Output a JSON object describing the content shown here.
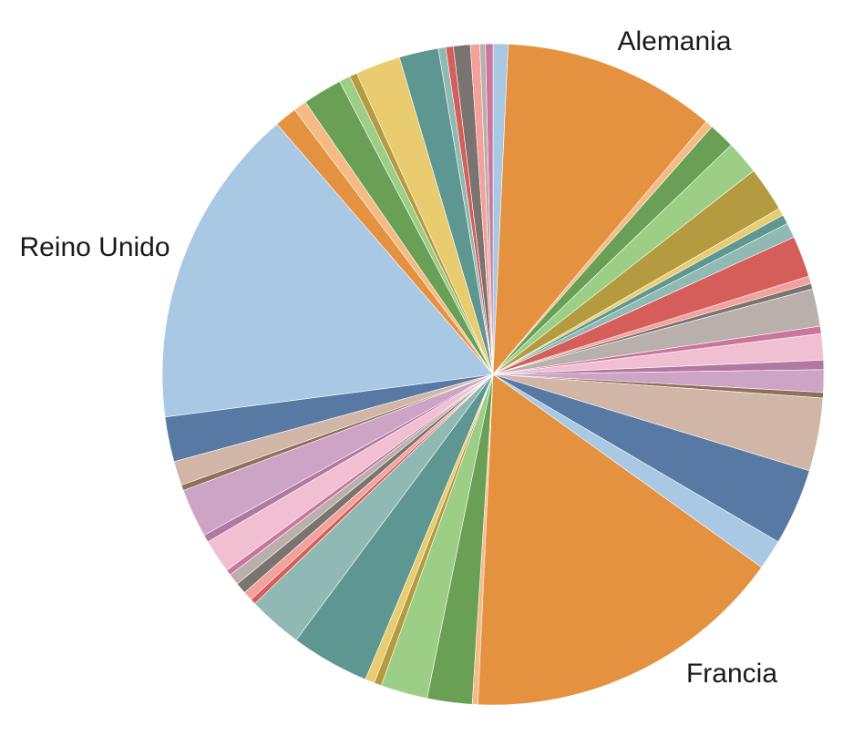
{
  "chart_data": {
    "type": "pie",
    "title": "",
    "start_angle_deg": -90,
    "direction": "clockwise",
    "legend": "none",
    "slices": [
      {
        "value": 0.8,
        "color": "#a8c8e4"
      },
      {
        "value": 11.4,
        "color": "#e49240",
        "label": "Alemania"
      },
      {
        "value": 0.4,
        "color": "#f6bb84"
      },
      {
        "value": 1.4,
        "color": "#69a055"
      },
      {
        "value": 1.8,
        "color": "#9ccf85"
      },
      {
        "value": 2.4,
        "color": "#b59b40"
      },
      {
        "value": 0.4,
        "color": "#e9cc6f"
      },
      {
        "value": 0.5,
        "color": "#5e9791"
      },
      {
        "value": 0.8,
        "color": "#90b9b4"
      },
      {
        "value": 2.2,
        "color": "#d55e5b"
      },
      {
        "value": 0.4,
        "color": "#f4a09b"
      },
      {
        "value": 0.3,
        "color": "#7a7370"
      },
      {
        "value": 2.0,
        "color": "#b9b0ab"
      },
      {
        "value": 0.4,
        "color": "#cb759b"
      },
      {
        "value": 1.4,
        "color": "#f1bfd2"
      },
      {
        "value": 0.5,
        "color": "#b178a1"
      },
      {
        "value": 1.2,
        "color": "#cda3c6"
      },
      {
        "value": 0.3,
        "color": "#8f7058"
      },
      {
        "value": 3.9,
        "color": "#d1b5a6"
      },
      {
        "value": 4.1,
        "color": "#5879a3"
      },
      {
        "value": 1.6,
        "color": "#a8c8e4"
      },
      {
        "value": 17.3,
        "color": "#e49240",
        "label": "Francia"
      },
      {
        "value": 0.3,
        "color": "#f6bb84"
      },
      {
        "value": 2.4,
        "color": "#69a055"
      },
      {
        "value": 2.5,
        "color": "#9ccf85"
      },
      {
        "value": 0.4,
        "color": "#b59b40"
      },
      {
        "value": 0.5,
        "color": "#e9cc6f"
      },
      {
        "value": 4.2,
        "color": "#5e9791"
      },
      {
        "value": 2.9,
        "color": "#90b9b4"
      },
      {
        "value": 0.3,
        "color": "#d55e5b"
      },
      {
        "value": 0.5,
        "color": "#f4a09b"
      },
      {
        "value": 0.6,
        "color": "#7a7370"
      },
      {
        "value": 0.6,
        "color": "#b9b0ab"
      },
      {
        "value": 0.3,
        "color": "#cb759b"
      },
      {
        "value": 1.8,
        "color": "#f1bfd2"
      },
      {
        "value": 0.4,
        "color": "#b178a1"
      },
      {
        "value": 2.6,
        "color": "#cda3c6"
      },
      {
        "value": 0.3,
        "color": "#8f7058"
      },
      {
        "value": 1.3,
        "color": "#d1b5a6"
      },
      {
        "value": 2.4,
        "color": "#5879a3"
      },
      {
        "value": 17.2,
        "color": "#a8c8e4",
        "label": "Reino Unido"
      },
      {
        "value": 1.2,
        "color": "#e49240"
      },
      {
        "value": 0.7,
        "color": "#f6bb84"
      },
      {
        "value": 2.1,
        "color": "#69a055"
      },
      {
        "value": 0.6,
        "color": "#9ccf85"
      },
      {
        "value": 0.4,
        "color": "#b59b40"
      },
      {
        "value": 2.4,
        "color": "#e9cc6f"
      },
      {
        "value": 2.1,
        "color": "#5e9791"
      },
      {
        "value": 0.4,
        "color": "#90b9b4"
      },
      {
        "value": 0.4,
        "color": "#d55e5b"
      },
      {
        "value": 0.9,
        "color": "#7a7370"
      },
      {
        "value": 0.5,
        "color": "#f4a09b"
      },
      {
        "value": 0.3,
        "color": "#b9b0ab"
      },
      {
        "value": 0.4,
        "color": "#cb759b"
      }
    ]
  }
}
